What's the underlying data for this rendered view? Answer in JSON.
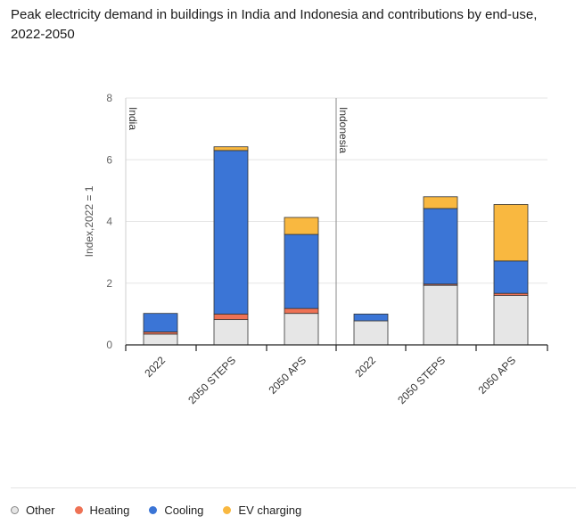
{
  "title": "Peak electricity demand in buildings in India and Indonesia and contributions by end-use, 2022-2050",
  "chart_data": {
    "type": "bar",
    "stacked": true,
    "title": "Peak electricity demand in buildings in India and Indonesia and contributions by end-use, 2022-2050",
    "ylabel": "Index,2022 = 1",
    "xlabel": "",
    "ylim": [
      0,
      8
    ],
    "yticks": [
      0,
      2,
      4,
      6,
      8
    ],
    "grid": true,
    "legend_position": "bottom",
    "panels": [
      {
        "name": "India",
        "categories": [
          "2022",
          "2050 STEPS",
          "2050 APS"
        ],
        "series": [
          {
            "name": "Other",
            "color": "#e6e6e6",
            "values": [
              0.35,
              0.82,
              1.02
            ]
          },
          {
            "name": "Heating",
            "color": "#ee7255",
            "values": [
              0.07,
              0.18,
              0.16
            ]
          },
          {
            "name": "Cooling",
            "color": "#3b75d6",
            "values": [
              0.6,
              5.3,
              2.4
            ]
          },
          {
            "name": "EV charging",
            "color": "#f9b840",
            "values": [
              0.0,
              0.12,
              0.55
            ]
          }
        ]
      },
      {
        "name": "Indonesia",
        "categories": [
          "2022",
          "2050 STEPS",
          "2050 APS"
        ],
        "series": [
          {
            "name": "Other",
            "color": "#e6e6e6",
            "values": [
              0.78,
              1.93,
              1.6
            ]
          },
          {
            "name": "Heating",
            "color": "#ee7255",
            "values": [
              0.0,
              0.04,
              0.07
            ]
          },
          {
            "name": "Cooling",
            "color": "#3b75d6",
            "values": [
              0.22,
              2.45,
              1.05
            ]
          },
          {
            "name": "EV charging",
            "color": "#f9b840",
            "values": [
              0.0,
              0.38,
              1.83
            ]
          }
        ]
      }
    ]
  },
  "legend": {
    "items": [
      {
        "label": "Other",
        "color": "#e6e6e6",
        "border": "#888888"
      },
      {
        "label": "Heating",
        "color": "#ee7255",
        "border": "#ee7255"
      },
      {
        "label": "Cooling",
        "color": "#3b75d6",
        "border": "#3b75d6"
      },
      {
        "label": "EV charging",
        "color": "#f9b840",
        "border": "#f9b840"
      }
    ]
  }
}
